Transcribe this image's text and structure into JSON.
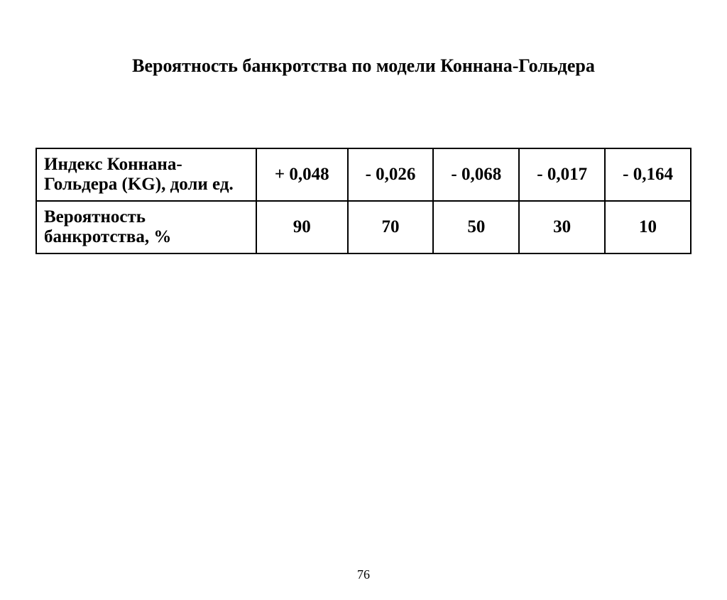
{
  "title": "Вероятность банкротства по модели Коннана-Гольдера",
  "table": {
    "type": "table",
    "background_color": "#ffffff",
    "border_color": "#000000",
    "font_family": "Times New Roman",
    "font_size": 25,
    "font_weight": "bold",
    "rows": [
      {
        "label": "Индекс Коннана-Гольдера (KG), доли ед.",
        "values": [
          "+ 0,048",
          "- 0,026",
          "- 0,068",
          "- 0,017",
          "- 0,164"
        ]
      },
      {
        "label": "Вероятность банкротства, %",
        "values": [
          "90",
          "70",
          "50",
          "30",
          "10"
        ]
      }
    ]
  },
  "page_number": "76"
}
